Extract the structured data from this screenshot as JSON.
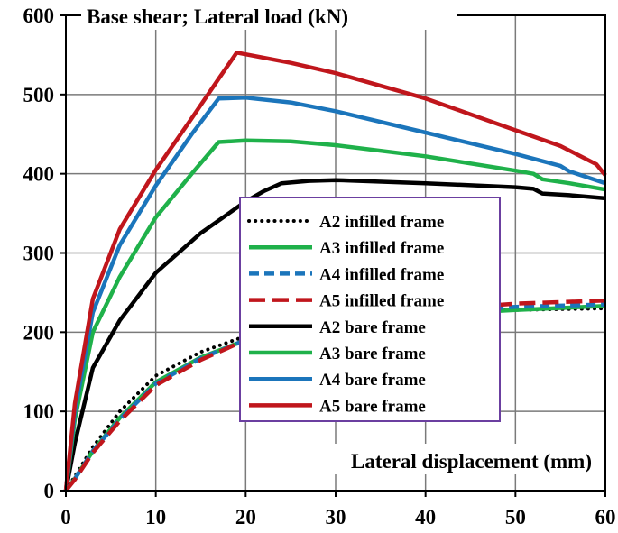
{
  "chart_data": {
    "type": "line",
    "title": "Base shear; Lateral load (kN)",
    "xlabel": "Lateral displacement (mm)",
    "ylabel": "",
    "xlim": [
      0,
      60
    ],
    "ylim": [
      0,
      600
    ],
    "x_ticks": [
      0,
      10,
      20,
      30,
      40,
      50,
      60
    ],
    "y_ticks": [
      0,
      100,
      200,
      300,
      400,
      500,
      600
    ],
    "x_tick_labels": [
      "0",
      "10",
      "20",
      "30",
      "40",
      "50",
      "60"
    ],
    "y_tick_labels": [
      "0",
      "100",
      "200",
      "300",
      "400",
      "500",
      "600"
    ],
    "grid": true,
    "legend_position": "center-right",
    "series": [
      {
        "name": "A2 infilled frame",
        "color": "#000000",
        "dash": "dotted",
        "points": [
          [
            0,
            0
          ],
          [
            1,
            18
          ],
          [
            3,
            55
          ],
          [
            6,
            100
          ],
          [
            10,
            145
          ],
          [
            15,
            175
          ],
          [
            20,
            195
          ],
          [
            30,
            215
          ],
          [
            40,
            225
          ],
          [
            50,
            228
          ],
          [
            60,
            230
          ]
        ]
      },
      {
        "name": "A3 infilled frame",
        "color": "#1fb14a",
        "dash": "solid",
        "points": [
          [
            0,
            0
          ],
          [
            1,
            15
          ],
          [
            3,
            50
          ],
          [
            6,
            92
          ],
          [
            10,
            137
          ],
          [
            15,
            168
          ],
          [
            20,
            190
          ],
          [
            30,
            212
          ],
          [
            40,
            222
          ],
          [
            50,
            228
          ],
          [
            60,
            233
          ]
        ]
      },
      {
        "name": "A4 infilled frame",
        "color": "#1b75bb",
        "dash": "dashed",
        "points": [
          [
            0,
            0
          ],
          [
            1,
            15
          ],
          [
            3,
            50
          ],
          [
            6,
            90
          ],
          [
            10,
            135
          ],
          [
            15,
            167
          ],
          [
            20,
            190
          ],
          [
            30,
            213
          ],
          [
            40,
            225
          ],
          [
            50,
            232
          ],
          [
            60,
            235
          ]
        ]
      },
      {
        "name": "A5 infilled frame",
        "color": "#c0161c",
        "dash": "longdash",
        "points": [
          [
            0,
            0
          ],
          [
            1,
            14
          ],
          [
            3,
            48
          ],
          [
            6,
            88
          ],
          [
            10,
            133
          ],
          [
            15,
            165
          ],
          [
            20,
            190
          ],
          [
            30,
            215
          ],
          [
            40,
            228
          ],
          [
            50,
            236
          ],
          [
            60,
            240
          ]
        ]
      },
      {
        "name": "A2 bare frame",
        "color": "#000000",
        "dash": "solid",
        "points": [
          [
            0,
            0
          ],
          [
            1,
            60
          ],
          [
            3,
            155
          ],
          [
            6,
            215
          ],
          [
            10,
            275
          ],
          [
            15,
            325
          ],
          [
            20,
            365
          ],
          [
            22,
            378
          ],
          [
            24,
            388
          ],
          [
            27,
            391
          ],
          [
            30,
            392
          ],
          [
            40,
            388
          ],
          [
            50,
            383
          ],
          [
            52,
            381
          ],
          [
            53,
            375
          ],
          [
            56,
            373
          ],
          [
            60,
            369
          ]
        ]
      },
      {
        "name": "A3 bare frame",
        "color": "#1fb14a",
        "dash": "solid",
        "points": [
          [
            0,
            0
          ],
          [
            1,
            90
          ],
          [
            3,
            200
          ],
          [
            6,
            270
          ],
          [
            10,
            345
          ],
          [
            14,
            400
          ],
          [
            17,
            440
          ],
          [
            20,
            442
          ],
          [
            25,
            441
          ],
          [
            30,
            436
          ],
          [
            40,
            422
          ],
          [
            50,
            404
          ],
          [
            52,
            400
          ],
          [
            53,
            393
          ],
          [
            56,
            388
          ],
          [
            60,
            380
          ]
        ]
      },
      {
        "name": "A4 bare frame",
        "color": "#1b75bb",
        "dash": "solid",
        "points": [
          [
            0,
            0
          ],
          [
            1,
            100
          ],
          [
            3,
            225
          ],
          [
            6,
            310
          ],
          [
            10,
            385
          ],
          [
            14,
            450
          ],
          [
            17,
            495
          ],
          [
            20,
            496
          ],
          [
            25,
            490
          ],
          [
            30,
            479
          ],
          [
            40,
            452
          ],
          [
            50,
            425
          ],
          [
            55,
            410
          ],
          [
            56,
            403
          ],
          [
            60,
            388
          ]
        ]
      },
      {
        "name": "A5 bare frame",
        "color": "#c0161c",
        "dash": "solid",
        "points": [
          [
            0,
            0
          ],
          [
            1,
            110
          ],
          [
            3,
            242
          ],
          [
            6,
            330
          ],
          [
            10,
            405
          ],
          [
            14,
            470
          ],
          [
            17,
            520
          ],
          [
            19,
            553
          ],
          [
            25,
            540
          ],
          [
            30,
            527
          ],
          [
            40,
            495
          ],
          [
            50,
            455
          ],
          [
            55,
            435
          ],
          [
            59,
            412
          ],
          [
            60,
            398
          ]
        ]
      }
    ]
  }
}
